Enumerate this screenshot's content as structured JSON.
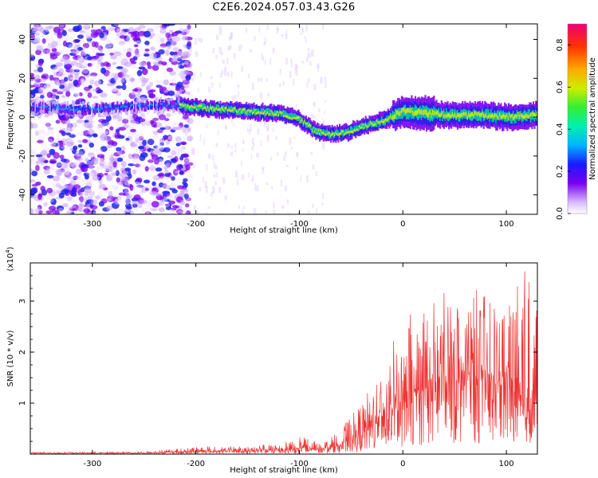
{
  "figure_title": "C2E6.2024.057.03.43.G26",
  "colors": {
    "snr_line": "#ee3333",
    "signal_core": "#ffaa00",
    "signal_mid": "#00dd77",
    "signal_edge": "#2222ee",
    "noise": "#6a00ee"
  },
  "chart_data": [
    {
      "type": "heatmap",
      "name": "spectrogram",
      "xlabel": "Height of straight line (km)",
      "ylabel": "Frequency (Hz)",
      "xlim": [
        -360,
        130
      ],
      "ylim": [
        -50,
        48
      ],
      "xticks": [
        -300,
        -200,
        -100,
        0,
        100
      ],
      "yticks": [
        -40,
        -20,
        0,
        20,
        40
      ],
      "colorbar": {
        "label": "Normalized spectral amplitude",
        "range": [
          0.0,
          0.9
        ],
        "ticks": [
          "0.0",
          "0.2",
          "0.4",
          "0.6",
          "0.8"
        ],
        "tick_values": [
          0.0,
          0.2,
          0.4,
          0.6,
          0.8
        ]
      },
      "signal_track": {
        "description": "frequency of peak spectral amplitude vs height",
        "x": [
          -360,
          -300,
          -250,
          -220,
          -200,
          -150,
          -120,
          -100,
          -85,
          -70,
          -55,
          -40,
          -20,
          0,
          20,
          50,
          80,
          100,
          130
        ],
        "y": [
          5,
          4,
          6,
          6,
          5,
          3,
          2,
          -1,
          -7,
          -9,
          -8,
          -5,
          -2,
          3,
          2,
          1,
          1,
          0,
          1
        ],
        "noise_region_x": [
          -360,
          -215
        ]
      }
    },
    {
      "type": "line",
      "name": "snr",
      "xlabel": "Height of straight line (km)",
      "ylabel": "SNR (10 * v/v)",
      "y_multiplier": "(x10",
      "y_multiplier_exp": "4",
      "xlim": [
        -360,
        130
      ],
      "ylim": [
        0,
        3.75
      ],
      "xticks": [
        -300,
        -200,
        -100,
        0,
        100
      ],
      "yticks": [
        1,
        2,
        3
      ],
      "envelope": {
        "description": "approximate mean and peak SNR (x10^4) vs height",
        "x": [
          -360,
          -250,
          -200,
          -150,
          -120,
          -100,
          -80,
          -60,
          -40,
          -20,
          0,
          20,
          40,
          60,
          80,
          100,
          120,
          130
        ],
        "mean": [
          0.02,
          0.02,
          0.05,
          0.06,
          0.08,
          0.1,
          0.1,
          0.15,
          0.35,
          0.7,
          0.95,
          1.2,
          1.4,
          1.45,
          1.4,
          1.3,
          1.1,
          1.0
        ],
        "peak": [
          0.04,
          0.05,
          0.15,
          0.15,
          0.22,
          0.38,
          0.2,
          0.5,
          1.0,
          1.8,
          2.6,
          3.0,
          3.2,
          3.3,
          3.2,
          3.1,
          3.75,
          3.6
        ]
      }
    }
  ]
}
